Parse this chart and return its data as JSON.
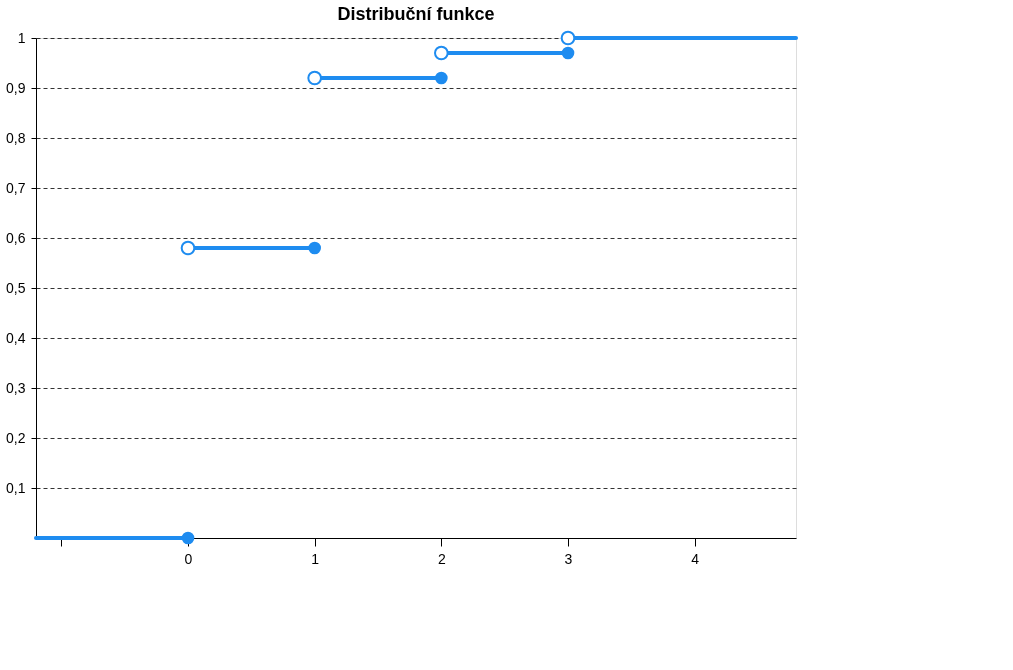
{
  "chart_data": {
    "type": "line",
    "title": "Distribuční funkce",
    "series": [
      {
        "color": "#1e8cf0",
        "x": [
          -1.2,
          0
        ],
        "values": [
          0,
          0
        ]
      },
      {
        "color": "#1e8cf0",
        "x": [
          0,
          1
        ],
        "values": [
          0.58,
          0.58
        ]
      },
      {
        "color": "#1e8cf0",
        "x": [
          1,
          2
        ],
        "values": [
          0.92,
          0.92
        ]
      },
      {
        "color": "#1e8cf0",
        "x": [
          2,
          3
        ],
        "values": [
          0.97,
          0.97
        ]
      },
      {
        "color": "#1e8cf0",
        "x": [
          3,
          4.8
        ],
        "values": [
          1,
          1
        ]
      }
    ],
    "marker": "circle",
    "grid": "y",
    "xlim": [
      -1.2,
      4.8
    ],
    "xticks": [
      {
        "value": -1,
        "label": null
      },
      0,
      1,
      2,
      3,
      4
    ],
    "ylim": [
      0,
      1
    ],
    "yticks": [
      {
        "value": 0.1,
        "label": "0,1"
      },
      {
        "value": 0.2,
        "label": "0,2"
      },
      {
        "value": 0.3,
        "label": "0,3"
      },
      {
        "value": 0.4,
        "label": "0,4"
      },
      {
        "value": 0.5,
        "label": "0,5"
      },
      {
        "value": 0.6,
        "label": "0,6"
      },
      {
        "value": 0.7,
        "label": "0,7"
      },
      {
        "value": 0.8,
        "label": "0,8"
      },
      {
        "value": 0.9,
        "label": "0,9"
      },
      {
        "value": 1,
        "label": "1"
      }
    ]
  }
}
